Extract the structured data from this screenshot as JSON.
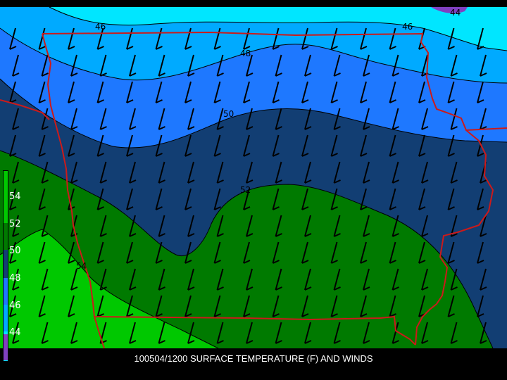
{
  "caption": "100504/1200 SURFACE TEMPERATURE (F) AND WINDS",
  "legend": [
    {
      "label": "54",
      "color": "#00c800"
    },
    {
      "label": "52",
      "color": "#007a00"
    },
    {
      "label": "50",
      "color": "#123e73"
    },
    {
      "label": "48",
      "color": "#1e78ff"
    },
    {
      "label": "46",
      "color": "#00aaff"
    },
    {
      "label": "44",
      "color": "#00e6ff"
    }
  ],
  "contour_labels": [
    "46",
    "46",
    "44",
    "48",
    "50",
    "52",
    "54"
  ],
  "colors": {
    "t44": "#00e6ff",
    "t46": "#00aaff",
    "t48": "#1e78ff",
    "t50": "#123e73",
    "t52": "#007a00",
    "t54": "#00c800",
    "purple": "#8040c0",
    "border": "#cc1a1a"
  }
}
